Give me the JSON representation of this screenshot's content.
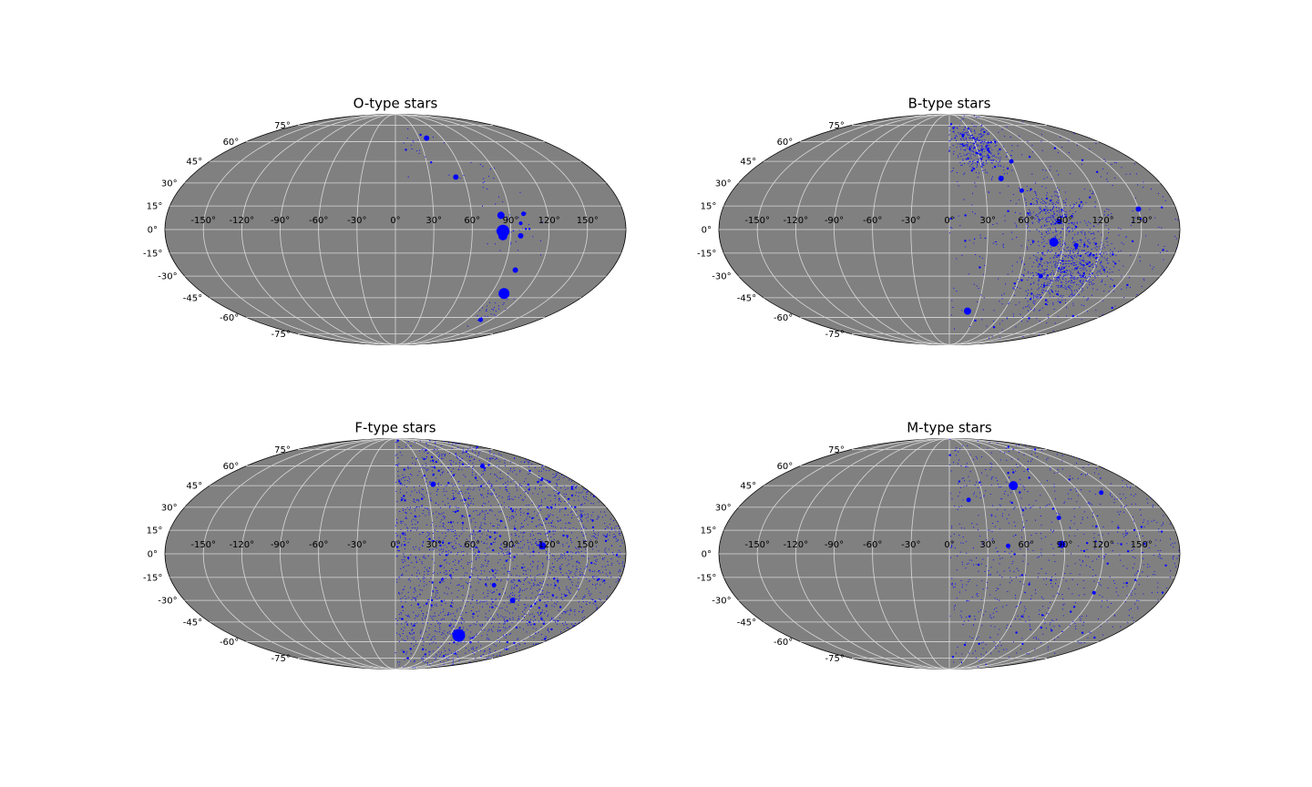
{
  "figure": {
    "grid": true,
    "background_color": "#808080",
    "point_color": "#0000ff",
    "gridline_color": "#d9d9d9"
  },
  "lon_tick_labels": [
    "-150°",
    "-120°",
    "-90°",
    "-60°",
    "-30°",
    "0°",
    "30°",
    "60°",
    "90°",
    "120°",
    "150°"
  ],
  "lat_tick_labels": [
    "-75°",
    "-60°",
    "-45°",
    "-30°",
    "-15°",
    "0°",
    "15°",
    "30°",
    "45°",
    "60°",
    "75°"
  ],
  "chart_data": [
    {
      "type": "scatter",
      "projection": "mollweide",
      "title": "O-type stars",
      "xlim": [
        -180,
        180
      ],
      "ylim": [
        -90,
        90
      ],
      "big_points": [
        {
          "lon": 84,
          "lat": -1,
          "size": 7
        },
        {
          "lon": 84,
          "lat": -4,
          "size": 5
        },
        {
          "lon": 102,
          "lat": -42,
          "size": 6
        },
        {
          "lon": 83,
          "lat": 9,
          "size": 4
        },
        {
          "lon": 40,
          "lat": 63,
          "size": 3
        },
        {
          "lon": 53,
          "lat": 34,
          "size": 3
        },
        {
          "lon": 98,
          "lat": -4,
          "size": 3
        },
        {
          "lon": 100,
          "lat": -26,
          "size": 3
        },
        {
          "lon": 101,
          "lat": 10,
          "size": 2.5
        },
        {
          "lon": 98,
          "lat": 4,
          "size": 2
        },
        {
          "lon": 107,
          "lat": -62,
          "size": 2.5
        }
      ],
      "field": {
        "count": 95,
        "lon_range": [
          0,
          145
        ],
        "clusters": [
          {
            "lon": 25,
            "lat": 55,
            "spread": 10,
            "weight": 0.2
          },
          {
            "lon": 75,
            "lat": 30,
            "spread": 10,
            "weight": 0.15
          },
          {
            "lon": 95,
            "lat": 0,
            "spread": 12,
            "weight": 0.35
          },
          {
            "lon": 105,
            "lat": -55,
            "spread": 8,
            "weight": 0.3
          }
        ]
      }
    },
    {
      "type": "scatter",
      "projection": "mollweide",
      "title": "B-type stars",
      "xlim": [
        -180,
        180
      ],
      "ylim": [
        -90,
        90
      ],
      "big_points": [
        {
          "lon": 82,
          "lat": -8,
          "size": 5
        },
        {
          "lon": 20,
          "lat": -55,
          "size": 4
        },
        {
          "lon": 150,
          "lat": 13,
          "size": 3
        },
        {
          "lon": 86,
          "lat": 5,
          "size": 3
        },
        {
          "lon": 45,
          "lat": 33,
          "size": 3
        },
        {
          "lon": 60,
          "lat": 25,
          "size": 2.5
        },
        {
          "lon": 78,
          "lat": -30,
          "size": 2.5
        },
        {
          "lon": 60,
          "lat": 45,
          "size": 2.5
        },
        {
          "lon": 100,
          "lat": -10,
          "size": 2.5
        }
      ],
      "field": {
        "count": 1700,
        "lon_range": [
          0,
          180
        ],
        "clusters": [
          {
            "lon": 100,
            "lat": -25,
            "spread": 20,
            "weight": 0.45
          },
          {
            "lon": 30,
            "lat": 55,
            "spread": 14,
            "weight": 0.2
          },
          {
            "lon": 80,
            "lat": 10,
            "spread": 12,
            "weight": 0.15
          },
          {
            "lon": 90,
            "lat": 0,
            "spread": 80,
            "weight": 0.2
          }
        ]
      }
    },
    {
      "type": "scatter",
      "projection": "mollweide",
      "title": "F-type stars",
      "xlim": [
        -180,
        180
      ],
      "ylim": [
        -90,
        90
      ],
      "big_points": [
        {
          "lon": 70,
          "lat": -55,
          "size": 7
        },
        {
          "lon": 115,
          "lat": 5,
          "size": 4
        },
        {
          "lon": 37,
          "lat": 46,
          "size": 3
        },
        {
          "lon": 100,
          "lat": -30,
          "size": 3
        },
        {
          "lon": 105,
          "lat": 60,
          "size": 2.5
        },
        {
          "lon": 80,
          "lat": -20,
          "size": 2.5
        }
      ],
      "field": {
        "count": 2600,
        "lon_range": [
          0,
          180
        ],
        "clusters": [
          {
            "lon": 90,
            "lat": 0,
            "spread": 80,
            "weight": 1.0
          }
        ]
      }
    },
    {
      "type": "scatter",
      "projection": "mollweide",
      "title": "M-type stars",
      "xlim": [
        -180,
        180
      ],
      "ylim": [
        -90,
        90
      ],
      "big_points": [
        {
          "lon": 62,
          "lat": 45,
          "size": 5
        },
        {
          "lon": 88,
          "lat": 6,
          "size": 4
        },
        {
          "lon": 90,
          "lat": 23,
          "size": 2.5
        },
        {
          "lon": 17,
          "lat": 35,
          "size": 2.5
        },
        {
          "lon": 46,
          "lat": 5,
          "size": 2.5
        },
        {
          "lon": 140,
          "lat": 40,
          "size": 2.5
        },
        {
          "lon": 120,
          "lat": -25,
          "size": 2
        }
      ],
      "field": {
        "count": 900,
        "lon_range": [
          0,
          180
        ],
        "clusters": [
          {
            "lon": 90,
            "lat": 0,
            "spread": 80,
            "weight": 1.0
          }
        ]
      }
    }
  ]
}
